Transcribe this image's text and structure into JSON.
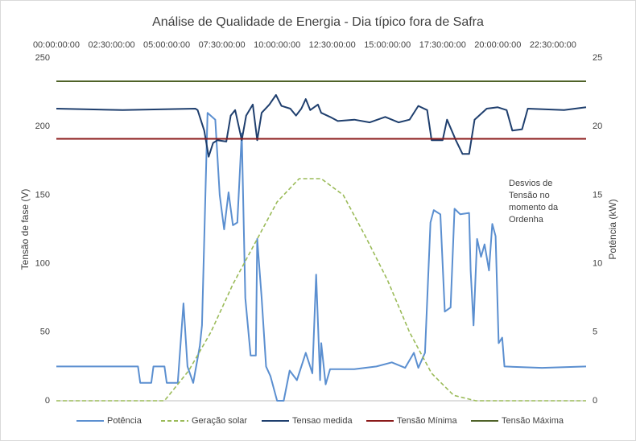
{
  "chart_data": {
    "type": "line",
    "title": "Análise de Qualidade de Energia - Dia típico fora de Safra",
    "y_label": "Tensão de fase (V)",
    "y2_label": "Potência (kW)",
    "annotation": [
      "Desvios de",
      "Tensão no",
      "momento da",
      "Ordenha"
    ],
    "xlim": [
      0,
      24
    ],
    "xticks": [
      {
        "value": 0,
        "label": "00:00:00:00"
      },
      {
        "value": 2.5,
        "label": "02:30:00:00"
      },
      {
        "value": 5,
        "label": "05:00:00:00"
      },
      {
        "value": 7.5,
        "label": "07:30:00:00"
      },
      {
        "value": 10,
        "label": "10:00:00:00"
      },
      {
        "value": 12.5,
        "label": "12:30:00:00"
      },
      {
        "value": 15,
        "label": "15:00:00:00"
      },
      {
        "value": 17.5,
        "label": "17:30:00:00"
      },
      {
        "value": 20,
        "label": "20:00:00:00"
      },
      {
        "value": 22.5,
        "label": "22:30:00:00"
      }
    ],
    "ylim": [
      0,
      250
    ],
    "yticks": [
      0,
      50,
      100,
      150,
      200,
      250
    ],
    "y2lim": [
      0,
      25
    ],
    "y2ticks": [
      0,
      5,
      10,
      15,
      20,
      25
    ],
    "series": [
      {
        "name": "Potência",
        "color": "#5b8fd0",
        "axis": "y2",
        "x": [
          0,
          3.7,
          3.8,
          4.3,
          4.4,
          4.9,
          5.0,
          5.5,
          5.76,
          5.94,
          6.2,
          6.5,
          6.6,
          6.85,
          7.2,
          7.4,
          7.6,
          7.8,
          8.0,
          8.2,
          8.4,
          8.56,
          8.8,
          9.04,
          9.1,
          9.3,
          9.5,
          9.7,
          10.0,
          10.3,
          10.57,
          10.9,
          11.3,
          11.6,
          11.77,
          11.95,
          12.0,
          12.2,
          12.4,
          13.5,
          14.5,
          15.2,
          15.8,
          16.2,
          16.4,
          16.7,
          16.95,
          17.1,
          17.4,
          17.6,
          17.86,
          18.04,
          18.3,
          18.7,
          18.77,
          18.9,
          19.06,
          19.24,
          19.4,
          19.6,
          19.75,
          19.9,
          20.04,
          20.2,
          20.3,
          22,
          24
        ],
        "values": [
          2.5,
          2.5,
          1.3,
          1.3,
          2.5,
          2.5,
          1.3,
          1.3,
          7.1,
          2.5,
          1.3,
          4,
          5.5,
          21,
          20.5,
          15,
          12.5,
          15.2,
          12.8,
          13,
          19.5,
          7.5,
          3.3,
          3.3,
          11.8,
          7.5,
          2.5,
          1.8,
          0,
          0,
          2.2,
          1.5,
          3.5,
          2,
          9.2,
          1.5,
          4.2,
          1.2,
          2.3,
          2.3,
          2.5,
          2.8,
          2.4,
          3.5,
          2.4,
          3.5,
          13,
          13.9,
          13.6,
          6.5,
          6.8,
          14,
          13.6,
          13.7,
          9.5,
          5.5,
          11.8,
          10.5,
          11.4,
          9.5,
          12.9,
          12,
          4.2,
          4.6,
          2.5,
          2.4,
          2.5
        ]
      },
      {
        "name": "Geração solar",
        "color": "#9bbb59",
        "axis": "y2",
        "dashed": true,
        "x": [
          0,
          4.9,
          6,
          7,
          8,
          9,
          10,
          11,
          12,
          13,
          14,
          15,
          16,
          17,
          18,
          19,
          24
        ],
        "values": [
          0,
          0,
          2.2,
          5,
          8.5,
          11.5,
          14.5,
          16.2,
          16.2,
          15,
          12,
          8.8,
          5,
          2,
          0.4,
          0,
          0
        ]
      },
      {
        "name": "Tensao medida",
        "color": "#1f3f6e",
        "axis": "y",
        "x": [
          0,
          3,
          6.3,
          6.4,
          6.7,
          6.9,
          7.1,
          7.3,
          7.7,
          7.9,
          8.1,
          8.4,
          8.6,
          8.9,
          9.1,
          9.3,
          9.65,
          9.95,
          10.2,
          10.6,
          10.86,
          11.1,
          11.3,
          11.5,
          11.85,
          12.0,
          12.4,
          12.75,
          13.5,
          14.2,
          14.9,
          15.5,
          16.0,
          16.4,
          16.8,
          17.0,
          17.5,
          17.7,
          18.1,
          18.4,
          18.7,
          18.95,
          19.5,
          20.0,
          20.4,
          20.66,
          21.1,
          21.36,
          23,
          24
        ],
        "values": [
          213,
          212,
          213,
          212,
          197,
          178,
          188,
          190,
          189,
          208,
          212,
          190,
          208,
          216,
          190,
          210,
          216,
          223,
          215,
          213,
          208,
          213,
          220,
          212,
          216,
          210,
          207,
          204,
          205,
          203,
          207,
          203,
          205,
          215,
          212,
          190,
          190,
          205,
          190,
          180,
          180,
          205,
          213,
          214,
          212,
          197,
          198,
          213,
          212,
          214
        ]
      },
      {
        "name": "Tensão Mínima",
        "color": "#8b1a1a",
        "axis": "y",
        "x": [
          0,
          24
        ],
        "values": [
          191,
          191
        ]
      },
      {
        "name": "Tensão Máxima",
        "color": "#4f6228",
        "axis": "y",
        "x": [
          0,
          24
        ],
        "values": [
          233,
          233
        ]
      }
    ]
  }
}
